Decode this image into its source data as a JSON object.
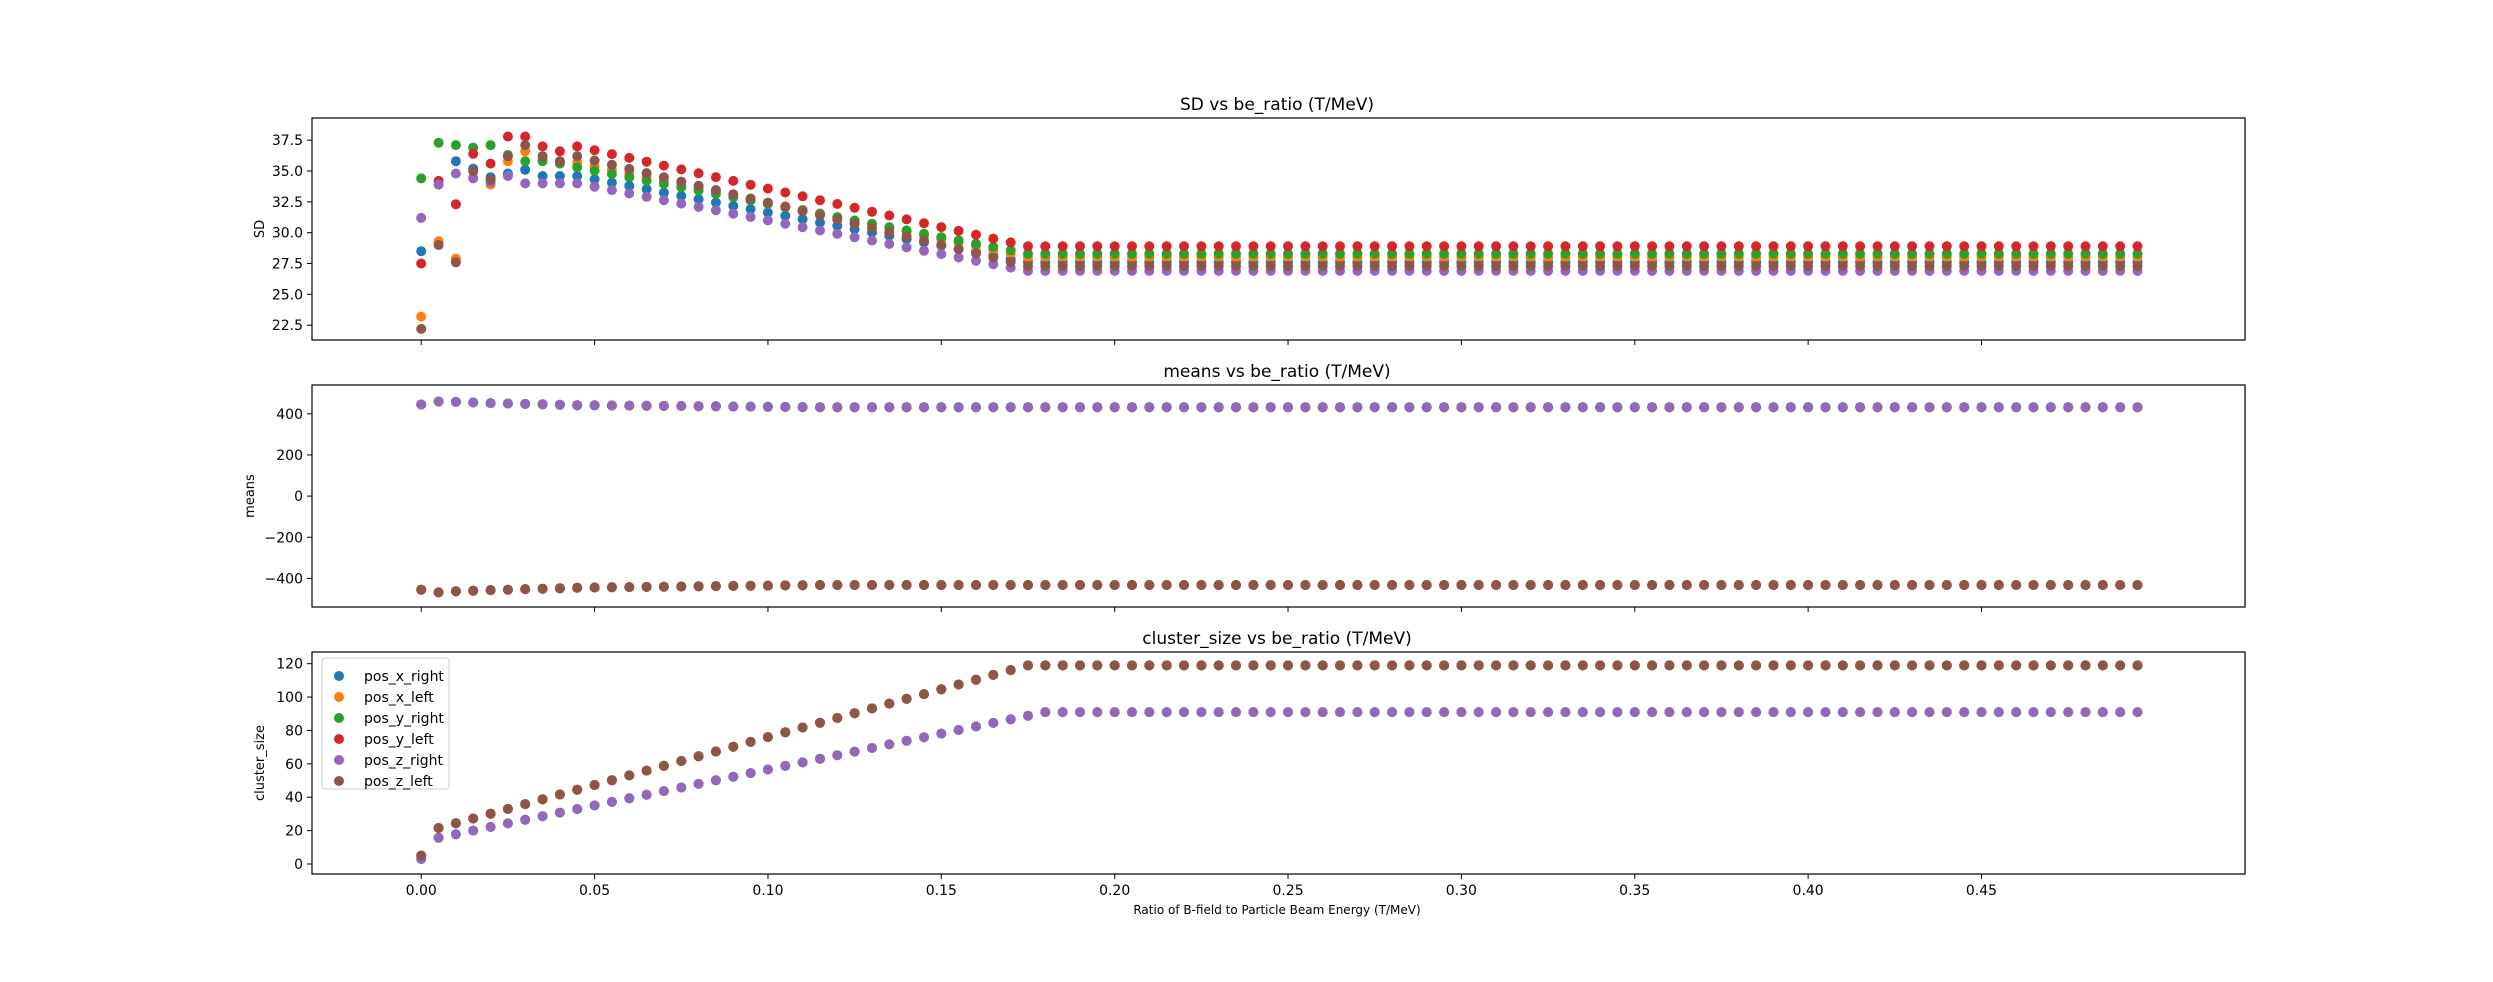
{
  "figure": {
    "xlabel": "Ratio of B-field to Particle Beam Energy (T/MeV)",
    "x_ticks": [
      0.0,
      0.05,
      0.1,
      0.15,
      0.2,
      0.25,
      0.3,
      0.35,
      0.4,
      0.45
    ],
    "x_tick_labels": [
      "0.00",
      "0.05",
      "0.10",
      "0.15",
      "0.20",
      "0.25",
      "0.30",
      "0.35",
      "0.40",
      "0.45"
    ],
    "xlim": [
      -0.0315,
      0.526
    ]
  },
  "legend_entries": [
    {
      "name": "pos_x_right",
      "color": "#1f77b4"
    },
    {
      "name": "pos_x_left",
      "color": "#ff7f0e"
    },
    {
      "name": "pos_y_right",
      "color": "#2ca02c"
    },
    {
      "name": "pos_y_left",
      "color": "#d62728"
    },
    {
      "name": "pos_z_right",
      "color": "#9467bd"
    },
    {
      "name": "pos_z_left",
      "color": "#8c564b"
    }
  ],
  "chart_data": [
    {
      "type": "scatter",
      "title": "SD vs be_ratio (T/MeV)",
      "ylabel": "SD",
      "xlabel": "",
      "ylim": [
        21.3,
        39.3
      ],
      "y_ticks": [
        22.5,
        25.0,
        27.5,
        30.0,
        32.5,
        35.0,
        37.5
      ],
      "y_tick_labels": [
        "22.5",
        "25.0",
        "27.5",
        "30.0",
        "32.5",
        "35.0",
        "37.5"
      ],
      "grid": false,
      "x": "0.000 to 0.495 step 0.005",
      "series": [
        {
          "name": "pos_x_right",
          "first_values": [
            28.5,
            29.2,
            35.8,
            35.2,
            34.5,
            34.8,
            35.1,
            34.6,
            34.6,
            34.6
          ],
          "plateau": 27.6,
          "plateau_from_x": 0.175
        },
        {
          "name": "pos_x_left",
          "first_values": [
            23.2,
            29.3,
            27.9,
            34.5,
            33.9,
            35.8,
            36.6,
            35.9,
            35.7,
            35.7
          ],
          "plateau": 28.0,
          "plateau_from_x": 0.175
        },
        {
          "name": "pos_y_right",
          "first_values": [
            34.4,
            37.3,
            37.1,
            36.9,
            37.1,
            36.3,
            35.8,
            35.8,
            35.6,
            35.3
          ],
          "plateau": 28.3,
          "plateau_from_x": 0.175
        },
        {
          "name": "pos_y_left",
          "first_values": [
            27.5,
            34.2,
            32.3,
            36.4,
            35.6,
            37.8,
            37.8,
            37.0,
            36.6,
            37.0
          ],
          "plateau": 28.9,
          "plateau_from_x": 0.175
        },
        {
          "name": "pos_z_right",
          "first_values": [
            31.2,
            33.9,
            34.8,
            34.4,
            34.1,
            34.6,
            34.0,
            34.0,
            34.0,
            34.0
          ],
          "plateau": 26.9,
          "plateau_from_x": 0.175
        },
        {
          "name": "pos_z_left",
          "first_values": [
            22.2,
            29.0,
            27.6,
            35.0,
            34.3,
            36.2,
            37.1,
            36.2,
            35.8,
            36.2
          ],
          "plateau": 27.3,
          "plateau_from_x": 0.175
        }
      ]
    },
    {
      "type": "scatter",
      "title": "means vs be_ratio (T/MeV)",
      "ylabel": "means",
      "xlabel": "",
      "ylim": [
        -539,
        540
      ],
      "y_ticks": [
        -400,
        -200,
        0,
        200,
        400
      ],
      "y_tick_labels": [
        "−400",
        "−200",
        "0",
        "200",
        "400"
      ],
      "grid": false,
      "x": "0.000 to 0.495 step 0.005",
      "series_values": {
        "upper_group": {
          "names": [
            "pos_x_right",
            "pos_y_right",
            "pos_z_right"
          ],
          "x0_value": 445,
          "early": [
            462,
            460,
            458,
            455,
            452,
            450,
            448,
            446,
            444,
            442
          ],
          "plateau": 432
        },
        "lower_group": {
          "names": [
            "pos_x_left",
            "pos_y_left",
            "pos_z_left"
          ],
          "x0_value": -455,
          "early": [
            -465,
            -468,
            -462,
            -460,
            -457,
            -455,
            -452,
            -450,
            -448,
            -445
          ],
          "plateau": -432
        }
      }
    },
    {
      "type": "scatter",
      "title": "cluster_size vs be_ratio (T/MeV)",
      "ylabel": "cluster_size",
      "xlabel": "Ratio of B-field to Particle Beam Energy (T/MeV)",
      "ylim": [
        -6,
        127
      ],
      "y_ticks": [
        0,
        20,
        40,
        60,
        80,
        100,
        120
      ],
      "y_tick_labels": [
        "0",
        "20",
        "40",
        "60",
        "80",
        "100",
        "120"
      ],
      "grid": false,
      "legend": "upper-left",
      "x": "0.000 to 0.495 step 0.005",
      "series_values": {
        "y_group": {
          "names": [
            "pos_y_left",
            "pos_y_right",
            "pos_x_left",
            "pos_z_left"
          ],
          "start": 5,
          "plateau": 119,
          "plateau_from_x": 0.175
        },
        "xz_group": {
          "names": [
            "pos_x_right",
            "pos_z_right"
          ],
          "start": 3,
          "plateau": 91,
          "plateau_from_x": 0.18
        }
      }
    }
  ]
}
